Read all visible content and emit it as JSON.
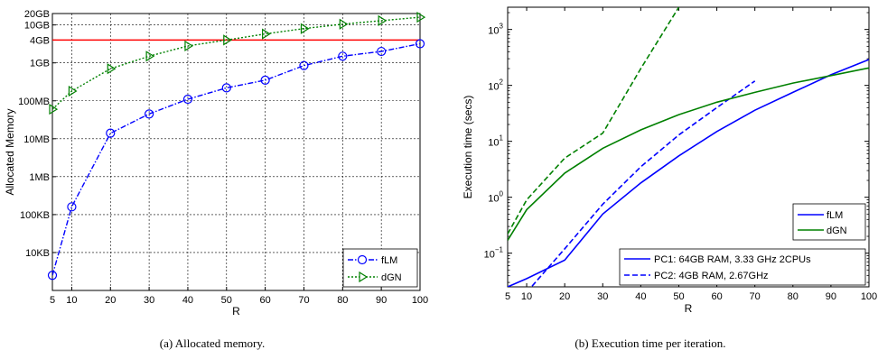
{
  "captions": {
    "a": "(a)  Allocated memory.",
    "b": "(b)  Execution time per iteration."
  },
  "chart_data": [
    {
      "type": "line",
      "xlabel": "R",
      "ylabel": "Allocated Memory",
      "yscale": "log",
      "xlim": [
        5,
        100
      ],
      "ylim": [
        1,
        20000000
      ],
      "unit": "KB",
      "grid": true,
      "legend_placement": "bottom-right",
      "x_ticks": [
        5,
        10,
        20,
        30,
        40,
        50,
        60,
        70,
        80,
        90,
        100
      ],
      "y_ticks": [
        {
          "value": 10,
          "label": "10KB"
        },
        {
          "value": 100,
          "label": "100KB"
        },
        {
          "value": 1000,
          "label": "1MB"
        },
        {
          "value": 10000,
          "label": "10MB"
        },
        {
          "value": 100000,
          "label": "100MB"
        },
        {
          "value": 1000000,
          "label": "1GB"
        },
        {
          "value": 4000000,
          "label": "4GB"
        },
        {
          "value": 10000000,
          "label": "10GB"
        },
        {
          "value": 20000000,
          "label": "20GB"
        }
      ],
      "reference_line": {
        "y": 4000000,
        "color": "#ff0000"
      },
      "series": [
        {
          "name": "fLM",
          "color": "#0000ff",
          "dash": "dashdot",
          "marker": "circle",
          "x": [
            5,
            10,
            20,
            30,
            40,
            50,
            60,
            70,
            80,
            90,
            100
          ],
          "y": [
            2.5,
            160,
            14000,
            45000,
            110000,
            220000,
            350000,
            850000,
            1500000,
            2000000,
            3200000
          ]
        },
        {
          "name": "dGN",
          "color": "#008000",
          "dash": "dotted",
          "marker": "triangle-right",
          "x": [
            5,
            10,
            20,
            30,
            40,
            50,
            60,
            70,
            80,
            90,
            100
          ],
          "y": [
            60000,
            180000,
            700000,
            1500000,
            2800000,
            4000000,
            5800000,
            8000000,
            10500000,
            13000000,
            16000000
          ]
        }
      ]
    },
    {
      "type": "line",
      "xlabel": "R",
      "ylabel": "Execution time (secs)",
      "yscale": "log",
      "xlim": [
        5,
        100
      ],
      "ylim": [
        0.025,
        2500
      ],
      "grid": false,
      "legend_placement": "bottom-right",
      "x_ticks": [
        5,
        10,
        20,
        30,
        40,
        50,
        60,
        70,
        80,
        90,
        100
      ],
      "y_ticks": [
        {
          "value": 0.1,
          "label": "10",
          "exp": "−1"
        },
        {
          "value": 1,
          "label": "10",
          "exp": "0"
        },
        {
          "value": 10,
          "label": "10",
          "exp": "1"
        },
        {
          "value": 100,
          "label": "10",
          "exp": "2"
        },
        {
          "value": 1000,
          "label": "10",
          "exp": "3"
        }
      ],
      "legend_methods": [
        {
          "name": "fLM",
          "color": "#0000ff"
        },
        {
          "name": "dGN",
          "color": "#008000"
        }
      ],
      "legend_machines": [
        {
          "name": "PC1: 64GB RAM, 3.33 GHz 2CPUs",
          "dash": "solid"
        },
        {
          "name": "PC2: 4GB RAM, 2.67GHz",
          "dash": "dashed"
        }
      ],
      "series": [
        {
          "method": "fLM",
          "machine": "PC1",
          "color": "#0000ff",
          "dash": "solid",
          "x": [
            5,
            10,
            20,
            30,
            40,
            50,
            60,
            70,
            80,
            90,
            100
          ],
          "y": [
            0.025,
            0.035,
            0.075,
            0.5,
            1.8,
            5.5,
            15,
            36,
            75,
            155,
            290
          ]
        },
        {
          "method": "fLM",
          "machine": "PC2",
          "color": "#0000ff",
          "dash": "dashed",
          "x": [
            10,
            20,
            30,
            40,
            50,
            60,
            70
          ],
          "y": [
            0.02,
            0.12,
            0.75,
            3.5,
            13,
            40,
            120
          ]
        },
        {
          "method": "dGN",
          "machine": "PC1",
          "color": "#008000",
          "dash": "solid",
          "x": [
            5,
            10,
            20,
            30,
            40,
            50,
            60,
            70,
            80,
            90,
            100
          ],
          "y": [
            0.17,
            0.6,
            2.7,
            7.5,
            16,
            30,
            50,
            75,
            110,
            150,
            205
          ]
        },
        {
          "method": "dGN",
          "machine": "PC2",
          "color": "#008000",
          "dash": "dashed",
          "x": [
            5,
            10,
            20,
            30,
            40,
            50
          ],
          "y": [
            0.22,
            0.9,
            5,
            14,
            200,
            2500
          ]
        }
      ]
    }
  ]
}
